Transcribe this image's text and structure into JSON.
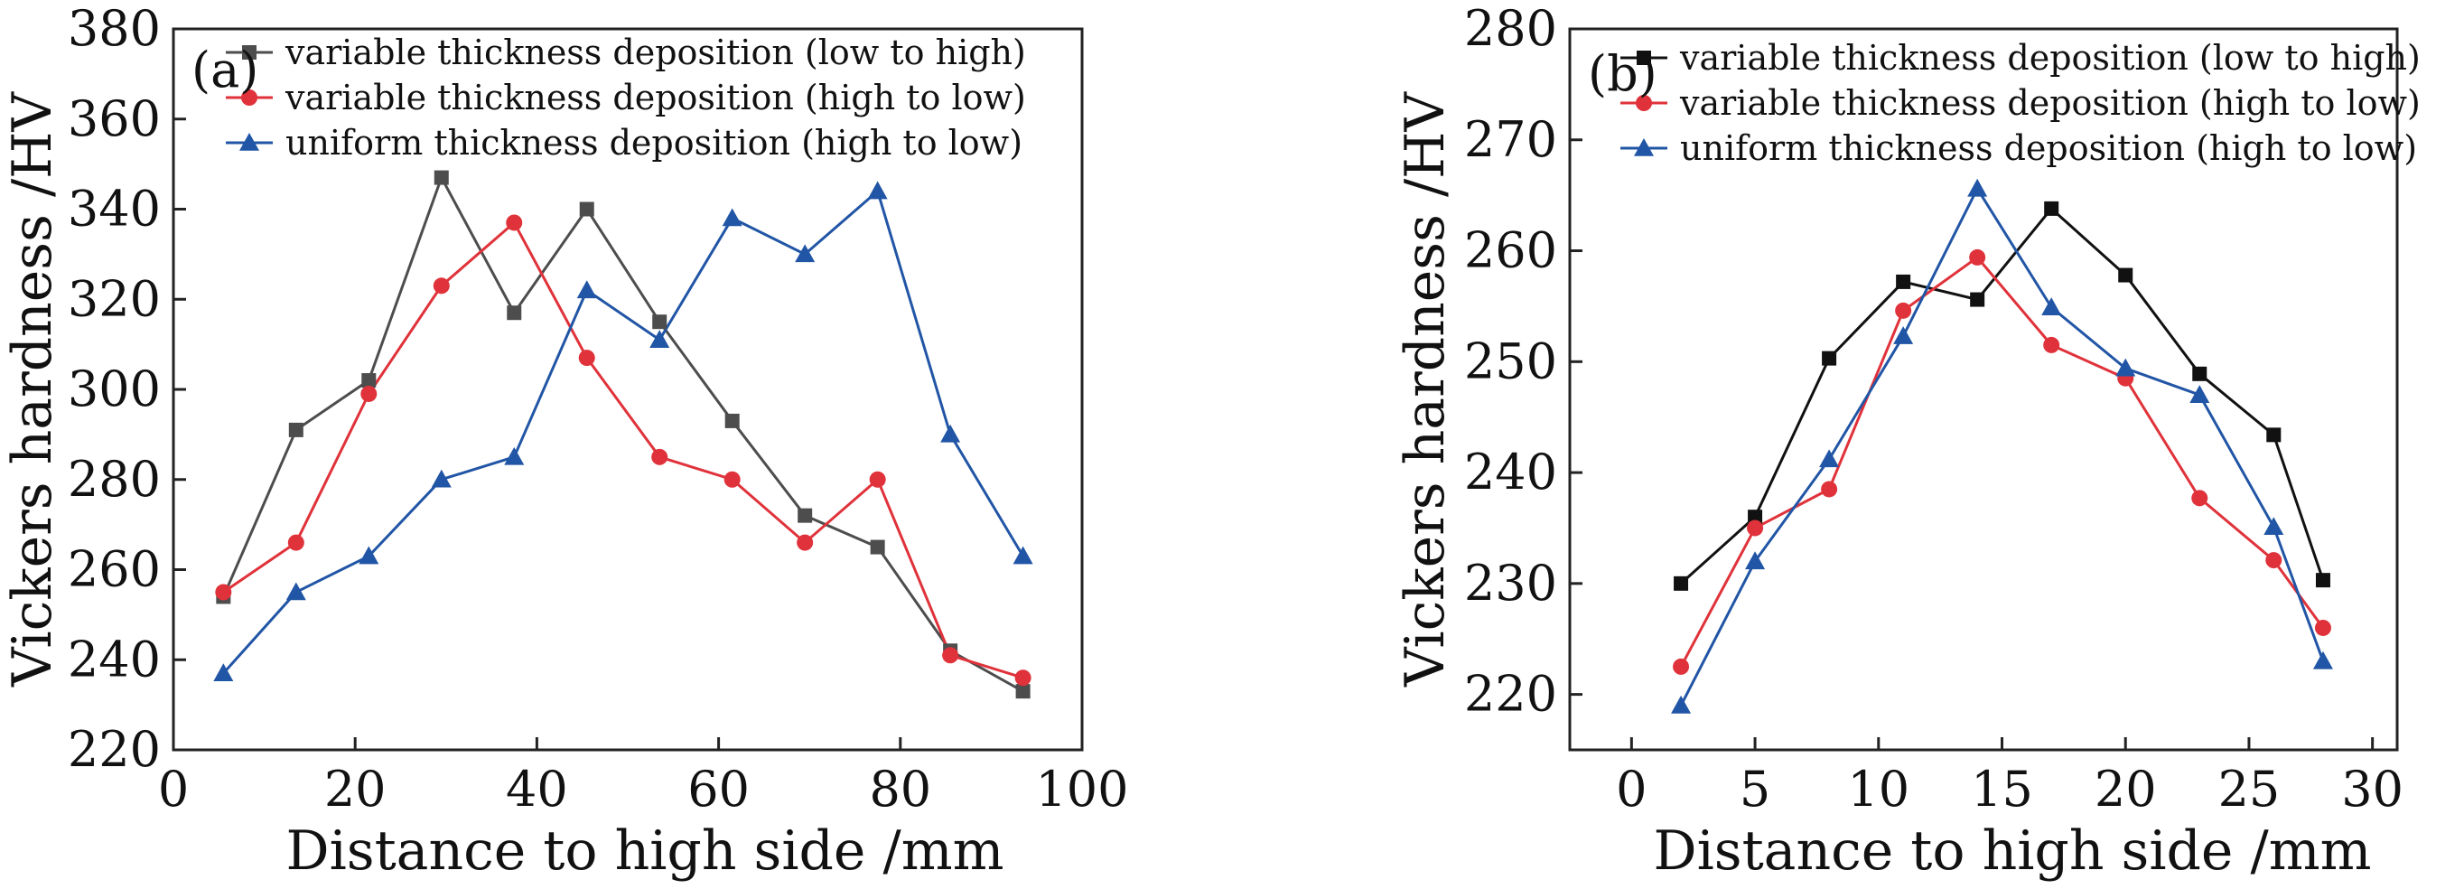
{
  "chart_data": [
    {
      "type": "line",
      "panel_label": "(a)",
      "xlabel": "Distance to high side /mm",
      "ylabel": "Vickers hardness /HV",
      "xlim": [
        0,
        100
      ],
      "ylim": [
        220,
        380
      ],
      "xticks": [
        0,
        20,
        40,
        60,
        80,
        100
      ],
      "yticks": [
        220,
        240,
        260,
        280,
        300,
        320,
        340,
        360,
        380
      ],
      "legend_position": "top-right",
      "series": [
        {
          "name": "variable thickness deposition (low to high)",
          "color": "#4d4d4d",
          "marker": "square",
          "x": [
            5.5,
            13.5,
            21.5,
            29.5,
            37.5,
            45.5,
            53.5,
            61.5,
            69.5,
            77.5,
            85.5,
            93.5
          ],
          "y": [
            254,
            291,
            302,
            347,
            317,
            340,
            315,
            293,
            272,
            265,
            242,
            233
          ]
        },
        {
          "name": "variable thickness deposition (high to low)",
          "color": "#e0323a",
          "marker": "circle",
          "x": [
            5.5,
            13.5,
            21.5,
            29.5,
            37.5,
            45.5,
            53.5,
            61.5,
            69.5,
            77.5,
            85.5,
            93.5
          ],
          "y": [
            255,
            266,
            299,
            323,
            337,
            307,
            285,
            280,
            266,
            280,
            241,
            236
          ]
        },
        {
          "name": "uniform thickness deposition (high to low)",
          "color": "#2155a5",
          "marker": "triangle",
          "x": [
            5.5,
            13.5,
            21.5,
            29.5,
            37.5,
            45.5,
            53.5,
            61.5,
            69.5,
            77.5,
            85.5,
            93.5
          ],
          "y": [
            237,
            255,
            263,
            280,
            285,
            322,
            311,
            338,
            330,
            344,
            290,
            263
          ]
        }
      ]
    },
    {
      "type": "line",
      "panel_label": "(b)",
      "xlabel": "Distance to high side /mm",
      "ylabel": "Vickers hardness /HV",
      "xlim": [
        -2.5,
        31
      ],
      "ylim": [
        215,
        280
      ],
      "xticks": [
        0,
        5,
        10,
        15,
        20,
        25,
        30
      ],
      "yticks": [
        220,
        230,
        240,
        250,
        260,
        270,
        280
      ],
      "legend_position": "top-right",
      "series": [
        {
          "name": "variable thickness deposition (low to high)",
          "color": "#111111",
          "marker": "square",
          "x": [
            2,
            5,
            8,
            11,
            14,
            17,
            20,
            23,
            26,
            28
          ],
          "y": [
            230,
            236,
            250.3,
            257.2,
            255.6,
            263.8,
            257.8,
            248.9,
            243.4,
            230.3
          ]
        },
        {
          "name": "variable thickness deposition (high to low)",
          "color": "#e0323a",
          "marker": "circle",
          "x": [
            2,
            5,
            8,
            11,
            14,
            17,
            20,
            23,
            26,
            28
          ],
          "y": [
            222.5,
            235,
            238.5,
            254.6,
            259.4,
            251.5,
            248.5,
            237.7,
            232.1,
            226
          ]
        },
        {
          "name": "uniform thickness deposition (high to low)",
          "color": "#2155a5",
          "marker": "triangle",
          "x": [
            2,
            5,
            8,
            11,
            14,
            17,
            20,
            23,
            26,
            28
          ],
          "y": [
            219,
            232,
            241.2,
            252.3,
            265.6,
            254.9,
            249.4,
            247,
            235.1,
            223
          ]
        }
      ]
    }
  ]
}
